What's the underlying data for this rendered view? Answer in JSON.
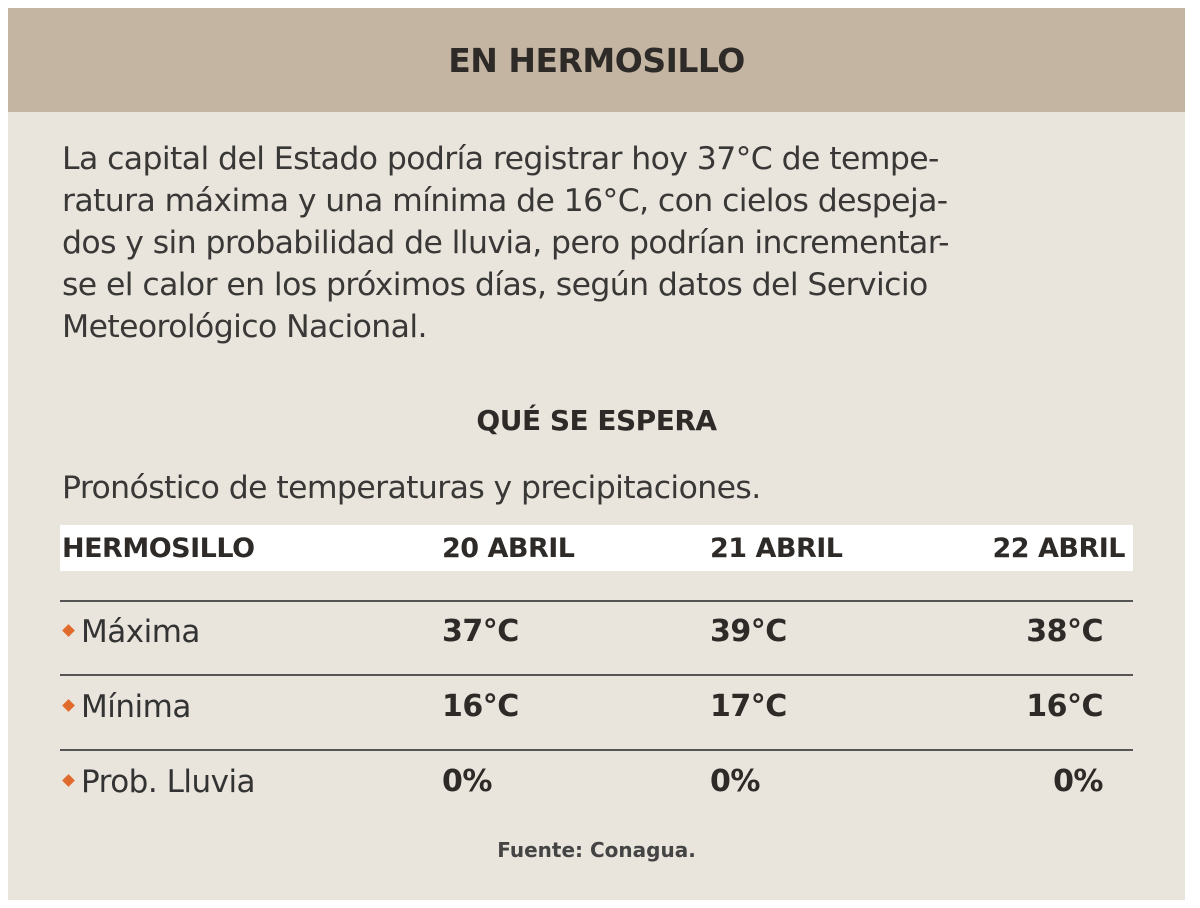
{
  "title": "EN HERMOSILLO",
  "intro_lines": [
    "La capital del Estado podría registrar hoy 37°C de tempe-",
    "ratura máxima y una mínima de 16°C, con cielos despeja-",
    "dos y sin probabilidad de lluvia, pero podrían incrementar-",
    "se el calor en los próximos días, según datos del Servicio",
    "Meteorológico Nacional."
  ],
  "subtitle": "QUÉ SE ESPERA",
  "description": "Pronóstico de temperaturas y precipitaciones.",
  "table": {
    "headers": [
      "HERMOSILLO",
      "20 ABRIL",
      "21 ABRIL",
      "22 ABRIL"
    ],
    "rows": [
      {
        "label": "Máxima",
        "values": [
          "37°C",
          "39°C",
          "38°C"
        ]
      },
      {
        "label": "Mínima",
        "values": [
          "16°C",
          "17°C",
          "16°C"
        ]
      },
      {
        "label": "Prob. Lluvia",
        "values": [
          "0%",
          "0%",
          "0%"
        ]
      }
    ]
  },
  "source": "Fuente: Conagua.",
  "colors": {
    "header_bg": "#c4b5a3",
    "card_bg": "#e9e5dd",
    "bullet": "#e06a2c"
  }
}
